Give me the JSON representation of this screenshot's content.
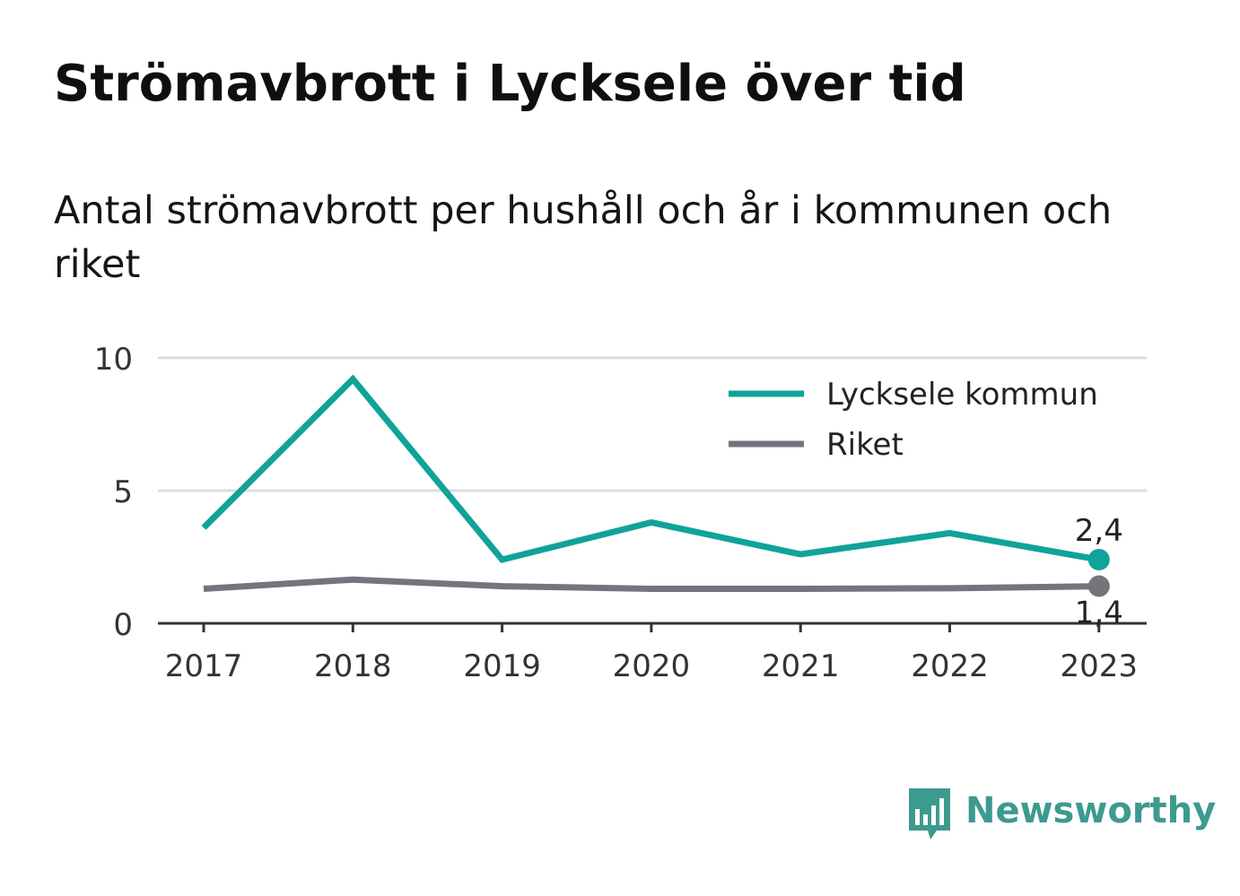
{
  "header": {
    "title": "Strömavbrott i Lycksele över tid",
    "subtitle": "Antal strömavbrott per hushåll och år i kommunen och riket"
  },
  "chart_data": {
    "type": "line",
    "x": [
      "2017",
      "2018",
      "2019",
      "2020",
      "2021",
      "2022",
      "2023"
    ],
    "y_ticks": [
      "0",
      "5",
      "10"
    ],
    "ylim": [
      0,
      10
    ],
    "grid": true,
    "legend_position": "top-right",
    "series": [
      {
        "name": "Lycksele kommun",
        "color": "#0fa399",
        "values": [
          3.6,
          9.2,
          2.4,
          3.8,
          2.6,
          3.4,
          2.4
        ],
        "end_label": "2,4"
      },
      {
        "name": "Riket",
        "color": "#76737c",
        "values": [
          1.3,
          1.65,
          1.4,
          1.3,
          1.3,
          1.32,
          1.4
        ],
        "end_label": "1,4"
      }
    ]
  },
  "brand": {
    "name": "Newsworthy",
    "color": "#3d9a8f",
    "icon": "bar-chart-speech-bubble-icon"
  }
}
